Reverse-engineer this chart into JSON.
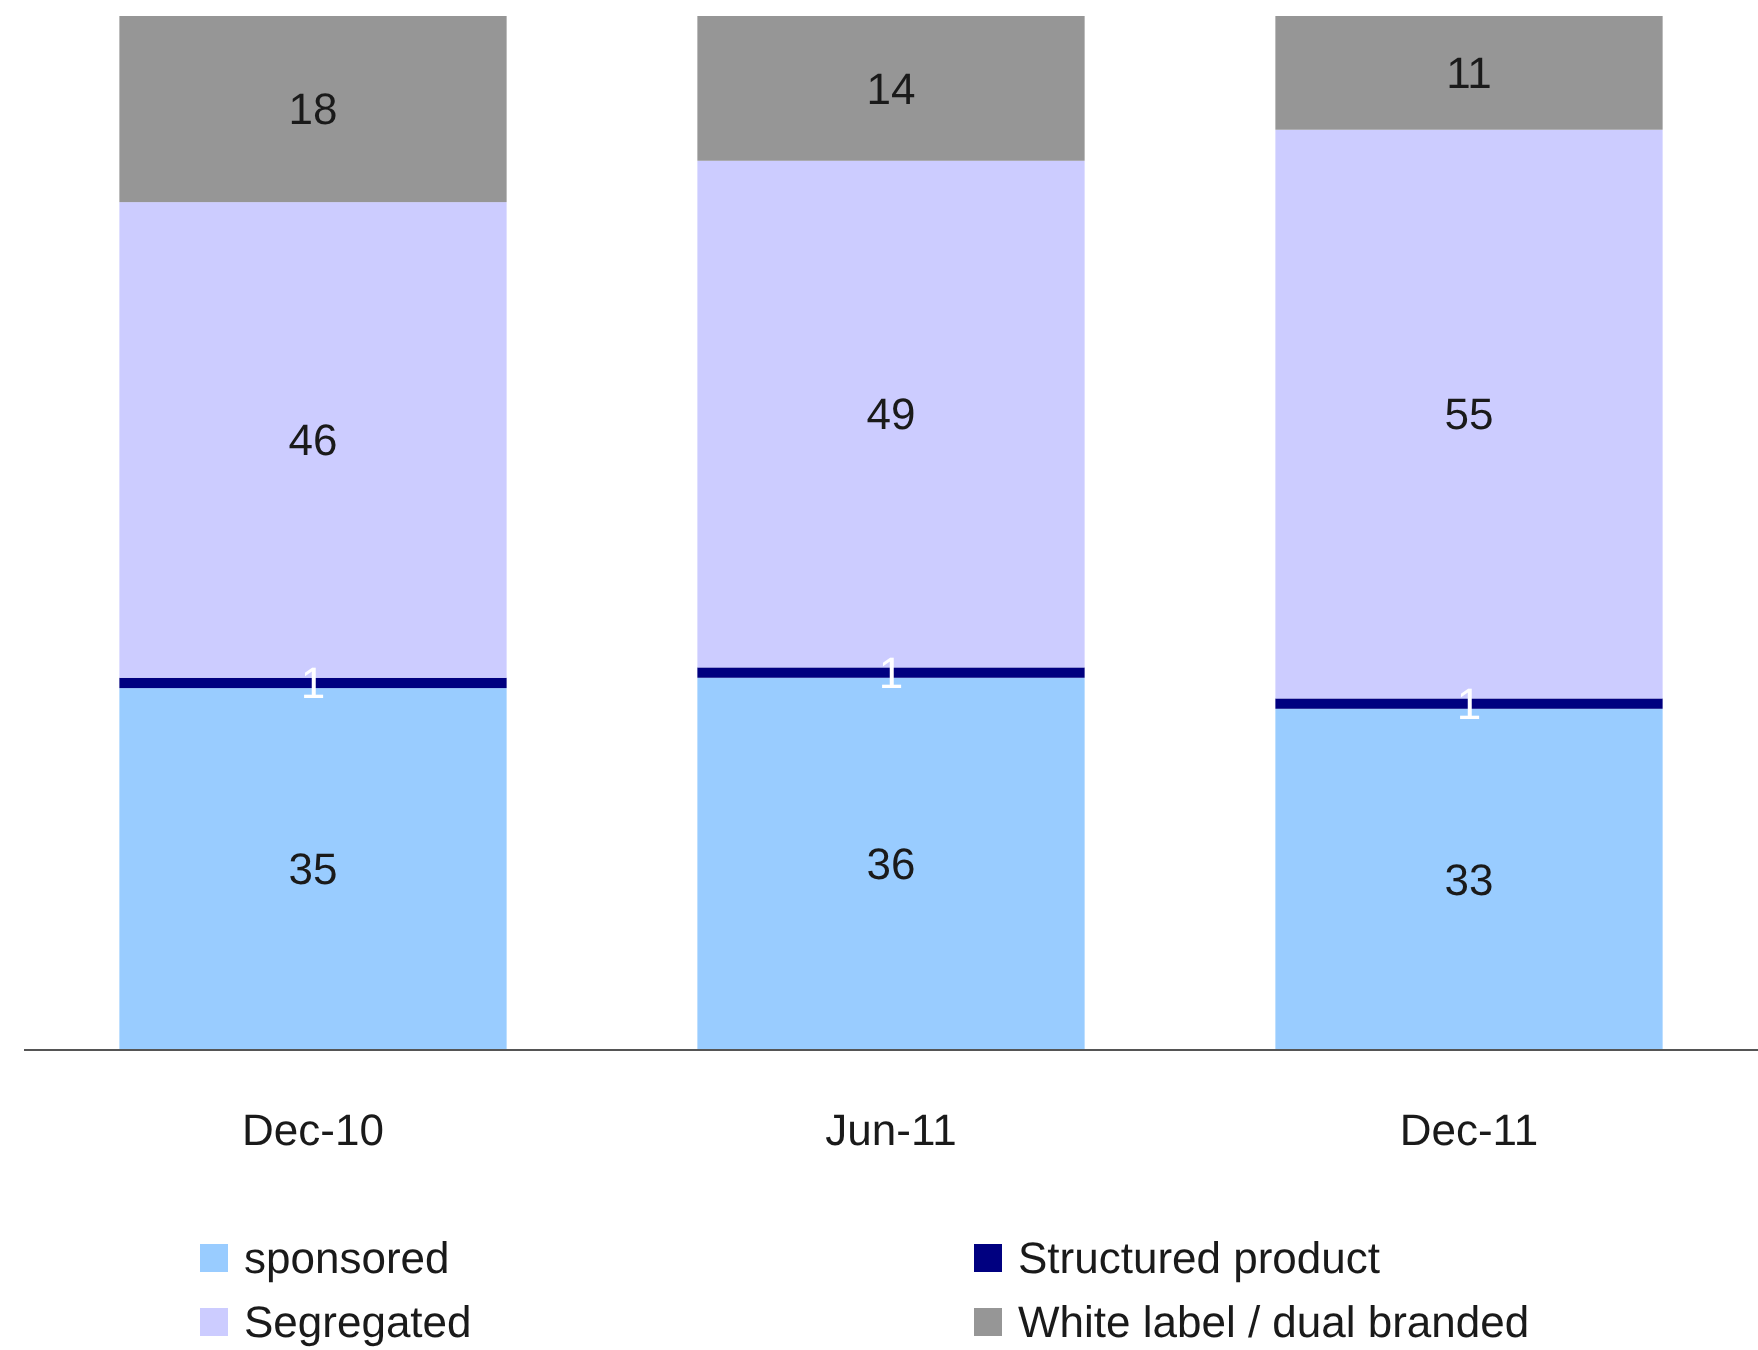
{
  "chart_data": {
    "type": "bar",
    "stacked": true,
    "data_labels": true,
    "legend": "bottom",
    "categories": [
      "Dec-10",
      "Jun-11",
      "Dec-11"
    ],
    "series": [
      {
        "name": "sponsored",
        "color": "#99ccff",
        "values": [
          35,
          36,
          33
        ]
      },
      {
        "name": "Structured product",
        "color": "#000080",
        "values": [
          1,
          1,
          1
        ]
      },
      {
        "name": "Segregated",
        "color": "#ccccff",
        "values": [
          46,
          49,
          55
        ]
      },
      {
        "name": "White label / dual branded",
        "color": "#969696",
        "values": [
          18,
          14,
          11
        ]
      }
    ]
  }
}
